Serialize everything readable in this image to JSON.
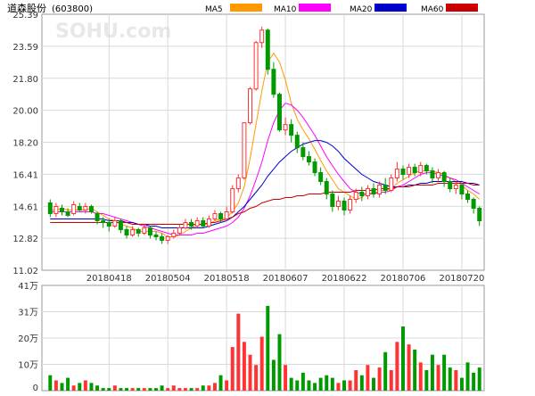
{
  "header": {
    "stock_name": "道森股份",
    "stock_code": "(603800)",
    "watermark": "SOHU.com",
    "legend": [
      {
        "label": "MA5",
        "color": "#ff9900"
      },
      {
        "label": "MA10",
        "color": "#ff00ff"
      },
      {
        "label": "MA20",
        "color": "#0000cc"
      },
      {
        "label": "MA60",
        "color": "#cc0000"
      }
    ]
  },
  "colors": {
    "up": "#ff3333",
    "down": "#009900",
    "grid": "#d9d9d9",
    "axis_text": "#333333"
  },
  "chart_data": [
    {
      "type": "candlestick",
      "title": "道森股份(603800)",
      "ylim": [
        11.02,
        25.39
      ],
      "y_ticks": [
        "25.39",
        "23.59",
        "21.80",
        "20.00",
        "18.20",
        "16.41",
        "14.61",
        "12.82",
        "11.02"
      ],
      "x_tick_labels": [
        {
          "index": 10,
          "label": "20180418"
        },
        {
          "index": 20,
          "label": "20180504"
        },
        {
          "index": 30,
          "label": "20180518"
        },
        {
          "index": 40,
          "label": "20180607"
        },
        {
          "index": 50,
          "label": "20180622"
        },
        {
          "index": 60,
          "label": "20180706"
        },
        {
          "index": 70,
          "label": "20180720"
        }
      ],
      "candles": [
        [
          14.8,
          14.2,
          15.0,
          14.0
        ],
        [
          14.2,
          14.6,
          14.8,
          14.0
        ],
        [
          14.5,
          14.3,
          14.7,
          14.1
        ],
        [
          14.3,
          14.1,
          14.5,
          14.0
        ],
        [
          14.2,
          14.7,
          14.9,
          14.1
        ],
        [
          14.6,
          14.4,
          14.8,
          14.3
        ],
        [
          14.4,
          14.6,
          14.8,
          14.2
        ],
        [
          14.6,
          14.3,
          14.7,
          14.2
        ],
        [
          14.2,
          13.8,
          14.3,
          13.6
        ],
        [
          13.8,
          13.7,
          14.0,
          13.4
        ],
        [
          13.7,
          13.5,
          13.9,
          13.2
        ],
        [
          13.5,
          13.8,
          14.0,
          13.4
        ],
        [
          13.8,
          13.3,
          13.9,
          13.1
        ],
        [
          13.3,
          13.0,
          13.5,
          12.8
        ],
        [
          13.0,
          13.3,
          13.5,
          12.9
        ],
        [
          13.3,
          13.1,
          13.4,
          12.9
        ],
        [
          13.1,
          13.4,
          13.6,
          13.0
        ],
        [
          13.4,
          13.0,
          13.5,
          12.8
        ],
        [
          13.0,
          12.9,
          13.2,
          12.7
        ],
        [
          12.9,
          12.7,
          13.1,
          12.5
        ],
        [
          12.7,
          12.9,
          13.0,
          12.5
        ],
        [
          12.9,
          13.1,
          13.3,
          12.8
        ],
        [
          13.1,
          13.4,
          13.6,
          13.0
        ],
        [
          13.4,
          13.7,
          13.9,
          13.3
        ],
        [
          13.7,
          13.5,
          13.9,
          13.3
        ],
        [
          13.5,
          13.8,
          14.0,
          13.4
        ],
        [
          13.8,
          13.5,
          14.0,
          13.4
        ],
        [
          13.5,
          13.9,
          14.1,
          13.4
        ],
        [
          13.9,
          14.2,
          14.4,
          13.8
        ],
        [
          14.2,
          13.9,
          14.3,
          13.7
        ],
        [
          13.9,
          14.3,
          14.6,
          13.8
        ],
        [
          14.3,
          15.6,
          15.8,
          14.2
        ],
        [
          15.6,
          16.2,
          16.4,
          15.4
        ],
        [
          16.2,
          19.3,
          19.3,
          16.1
        ],
        [
          19.3,
          21.2,
          21.3,
          19.2
        ],
        [
          21.2,
          23.8,
          23.9,
          21.1
        ],
        [
          23.8,
          24.5,
          24.7,
          23.5
        ],
        [
          24.5,
          22.3,
          24.6,
          22.0
        ],
        [
          22.3,
          20.9,
          22.7,
          20.7
        ],
        [
          20.9,
          18.9,
          21.0,
          18.8
        ],
        [
          18.9,
          19.2,
          19.6,
          18.6
        ],
        [
          19.2,
          18.6,
          19.5,
          18.2
        ],
        [
          18.6,
          17.9,
          18.8,
          17.6
        ],
        [
          17.9,
          17.4,
          18.2,
          17.2
        ],
        [
          17.4,
          17.1,
          17.7,
          16.9
        ],
        [
          17.1,
          16.5,
          17.3,
          16.3
        ],
        [
          16.5,
          16.0,
          16.8,
          15.8
        ],
        [
          16.0,
          15.3,
          16.2,
          15.0
        ],
        [
          15.3,
          14.6,
          15.5,
          14.3
        ],
        [
          14.6,
          14.9,
          15.2,
          14.4
        ],
        [
          14.9,
          14.4,
          15.1,
          14.1
        ],
        [
          14.4,
          15.0,
          15.2,
          14.2
        ],
        [
          15.0,
          15.4,
          15.6,
          14.8
        ],
        [
          15.4,
          15.2,
          15.7,
          14.9
        ],
        [
          15.2,
          15.6,
          15.8,
          15.0
        ],
        [
          15.6,
          15.3,
          15.9,
          15.1
        ],
        [
          15.3,
          15.8,
          16.0,
          15.1
        ],
        [
          15.8,
          15.5,
          16.2,
          15.3
        ],
        [
          15.5,
          16.2,
          16.4,
          15.4
        ],
        [
          16.2,
          16.7,
          17.1,
          16.0
        ],
        [
          16.7,
          16.4,
          16.9,
          16.1
        ],
        [
          16.4,
          16.8,
          17.0,
          16.2
        ],
        [
          16.8,
          16.5,
          17.0,
          16.3
        ],
        [
          16.5,
          16.9,
          17.1,
          16.3
        ],
        [
          16.9,
          16.6,
          17.0,
          16.4
        ],
        [
          16.6,
          16.2,
          16.8,
          15.9
        ],
        [
          16.2,
          16.5,
          16.7,
          16.0
        ],
        [
          16.5,
          16.0,
          16.6,
          15.7
        ],
        [
          16.0,
          15.6,
          16.2,
          15.4
        ],
        [
          15.6,
          15.8,
          16.0,
          15.3
        ],
        [
          15.8,
          15.3,
          15.9,
          15.0
        ],
        [
          15.3,
          15.0,
          15.5,
          14.8
        ],
        [
          15.0,
          14.5,
          15.1,
          14.2
        ],
        [
          14.5,
          13.8,
          14.6,
          13.5
        ]
      ],
      "ma_series": [
        {
          "name": "MA5",
          "values": [
            14.4,
            14.4,
            14.5,
            14.4,
            14.4,
            14.4,
            14.4,
            14.5,
            14.3,
            14.1,
            13.9,
            13.8,
            13.6,
            13.5,
            13.4,
            13.2,
            13.2,
            13.2,
            13.2,
            13.1,
            12.9,
            12.9,
            13.0,
            13.2,
            13.4,
            13.6,
            13.6,
            13.6,
            13.8,
            13.9,
            14.0,
            14.3,
            14.8,
            15.7,
            17.3,
            19.2,
            21.1,
            22.7,
            23.2,
            22.7,
            21.7,
            20.4,
            19.5,
            18.9,
            18.4,
            17.8,
            17.2,
            16.6,
            16.1,
            15.6,
            15.4,
            15.2,
            15.0,
            15.1,
            15.4,
            15.3,
            15.5,
            15.5,
            15.6,
            15.9,
            16.1,
            16.3,
            16.5,
            16.6,
            16.6,
            16.6,
            16.5,
            16.4,
            16.2,
            16.0,
            15.8,
            15.5,
            15.3,
            15.0
          ]
        },
        {
          "name": "MA10",
          "values": [
            14.3,
            14.3,
            14.3,
            14.3,
            14.3,
            14.3,
            14.3,
            14.3,
            14.2,
            14.2,
            14.1,
            14.0,
            13.9,
            13.8,
            13.7,
            13.6,
            13.5,
            13.4,
            13.3,
            13.2,
            13.1,
            13.0,
            13.0,
            13.0,
            13.0,
            13.1,
            13.1,
            13.2,
            13.3,
            13.4,
            13.5,
            13.7,
            14.0,
            14.5,
            15.2,
            16.1,
            17.1,
            18.3,
            19.3,
            20.0,
            20.4,
            20.3,
            20.0,
            19.6,
            19.1,
            18.6,
            18.0,
            17.4,
            16.9,
            16.4,
            16.0,
            15.6,
            15.4,
            15.3,
            15.3,
            15.3,
            15.4,
            15.4,
            15.5,
            15.7,
            15.8,
            16.0,
            16.2,
            16.4,
            16.5,
            16.5,
            16.4,
            16.3,
            16.2,
            16.1,
            15.9,
            15.7,
            15.5,
            15.3
          ]
        },
        {
          "name": "MA20",
          "values": [
            13.9,
            13.9,
            13.9,
            13.9,
            13.9,
            13.9,
            13.9,
            13.9,
            13.9,
            13.9,
            13.8,
            13.8,
            13.8,
            13.7,
            13.7,
            13.6,
            13.6,
            13.5,
            13.5,
            13.4,
            13.4,
            13.4,
            13.4,
            13.4,
            13.4,
            13.4,
            13.4,
            13.5,
            13.6,
            13.7,
            13.8,
            14.0,
            14.3,
            14.6,
            15.0,
            15.4,
            15.8,
            16.3,
            16.7,
            17.1,
            17.4,
            17.7,
            17.9,
            18.1,
            18.2,
            18.3,
            18.3,
            18.2,
            18.0,
            17.7,
            17.3,
            17.0,
            16.7,
            16.4,
            16.2,
            16.0,
            15.9,
            15.8,
            15.7,
            15.7,
            15.7,
            15.8,
            15.8,
            15.9,
            15.9,
            16.0,
            16.0,
            16.0,
            16.0,
            16.0,
            16.0,
            15.9,
            15.9,
            15.8
          ]
        },
        {
          "name": "MA60",
          "values": [
            13.7,
            13.7,
            13.7,
            13.7,
            13.7,
            13.7,
            13.7,
            13.7,
            13.7,
            13.7,
            13.7,
            13.7,
            13.7,
            13.7,
            13.6,
            13.6,
            13.6,
            13.6,
            13.6,
            13.6,
            13.6,
            13.6,
            13.6,
            13.6,
            13.6,
            13.6,
            13.6,
            13.7,
            13.7,
            13.8,
            13.9,
            14.0,
            14.2,
            14.3,
            14.5,
            14.6,
            14.8,
            14.9,
            15.0,
            15.0,
            15.1,
            15.1,
            15.2,
            15.2,
            15.3,
            15.3,
            15.3,
            15.4,
            15.4,
            15.4,
            15.4,
            15.4,
            15.5,
            15.5,
            15.5,
            15.5,
            15.6,
            15.6,
            15.6,
            15.7,
            15.7,
            15.7,
            15.8,
            15.8,
            15.8,
            15.8,
            15.9,
            15.9,
            15.9,
            15.9,
            15.9,
            15.9,
            15.8,
            15.8
          ]
        }
      ]
    },
    {
      "type": "bar",
      "title": "",
      "unit": "万",
      "ylim": [
        0,
        41
      ],
      "y_ticks": [
        "41万",
        "31万",
        "20万",
        "10万",
        "0"
      ],
      "values": [
        6,
        4,
        3,
        5,
        2,
        3,
        4,
        3,
        2,
        1,
        1,
        2,
        1,
        1,
        1,
        1,
        1,
        1,
        1,
        2,
        1,
        2,
        1,
        1,
        1,
        1,
        2,
        2,
        3,
        6,
        4,
        17,
        30,
        19,
        14,
        10,
        21,
        33,
        12,
        22,
        10,
        5,
        4,
        7,
        4,
        3,
        5,
        6,
        5,
        3,
        4,
        4,
        8,
        6,
        10,
        5,
        9,
        15,
        8,
        19,
        25,
        18,
        16,
        11,
        8,
        14,
        10,
        14,
        9,
        8,
        5,
        11,
        7,
        9
      ]
    }
  ]
}
